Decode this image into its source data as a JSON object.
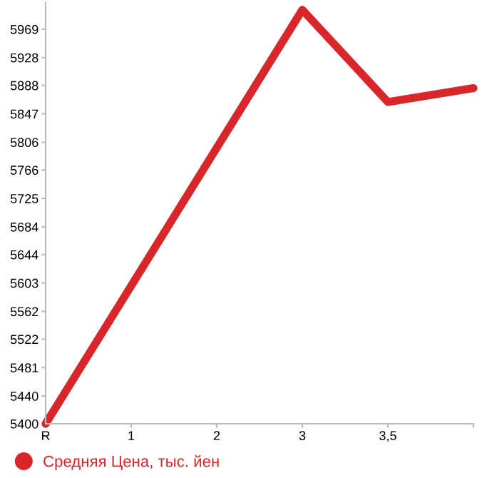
{
  "chart_data": {
    "type": "line",
    "categories": [
      "R",
      "1",
      "2",
      "3",
      "3,5",
      null
    ],
    "series": [
      {
        "name": "Средняя Цена, тыс. йен",
        "color": "#d9262b",
        "values": [
          5400,
          5599,
          5798,
          5997,
          5864,
          5884
        ]
      }
    ],
    "ylim": [
      5400,
      6007
    ],
    "yticks": [
      5400,
      5440,
      5481,
      5522,
      5562,
      5603,
      5644,
      5684,
      5725,
      5766,
      5806,
      5847,
      5888,
      5928,
      5969
    ],
    "grid": false,
    "legend": "bottom left",
    "marker": "none",
    "line_style": "solid"
  }
}
